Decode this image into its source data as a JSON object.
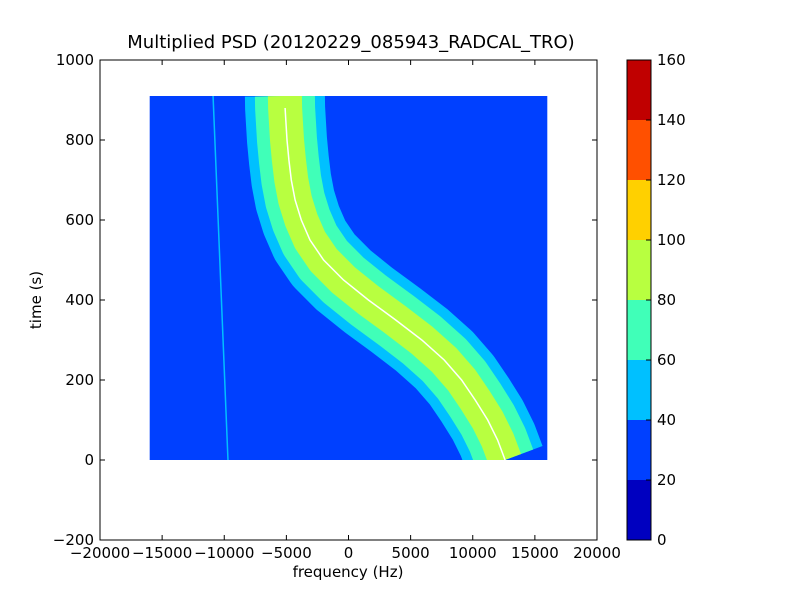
{
  "chart_data": {
    "type": "heatmap",
    "title": "Multiplied PSD (20120229_085943_RADCAL_TRO)",
    "xlabel": "frequency (Hz)",
    "ylabel": "time (s)",
    "xlim": [
      -20000,
      20000
    ],
    "ylim": [
      -200,
      1000
    ],
    "x_ticks": [
      -20000,
      -15000,
      -10000,
      -5000,
      0,
      5000,
      10000,
      15000,
      20000
    ],
    "x_tick_labels": [
      "−20000",
      "−15000",
      "−10000",
      "−5000",
      "0",
      "5000",
      "10000",
      "15000",
      "20000"
    ],
    "y_ticks": [
      -200,
      0,
      200,
      400,
      600,
      800,
      1000
    ],
    "y_tick_labels": [
      "−200",
      "0",
      "200",
      "400",
      "600",
      "800",
      "1000"
    ],
    "data_extent": {
      "x": [
        -16000,
        16000
      ],
      "y": [
        0,
        910
      ]
    },
    "background_value": 25,
    "colorbar": {
      "levels": [
        0,
        20,
        40,
        60,
        80,
        100,
        120,
        140,
        160
      ],
      "tick_labels": [
        "0",
        "20",
        "40",
        "60",
        "80",
        "100",
        "120",
        "140",
        "160"
      ],
      "colors": [
        "#0000c0",
        "#0040ff",
        "#00c0ff",
        "#40ffb8",
        "#b8ff40",
        "#ffd000",
        "#ff5000",
        "#c00000"
      ]
    },
    "features": [
      {
        "name": "doppler-curve",
        "description_points_x_at_time": {
          "time": [
            0,
            50,
            100,
            150,
            200,
            250,
            300,
            350,
            400,
            450,
            500,
            550,
            600,
            650,
            700,
            750,
            800,
            850,
            880
          ],
          "freq": [
            12600,
            12000,
            11200,
            10200,
            9100,
            7700,
            5900,
            3800,
            1600,
            -400,
            -2000,
            -3100,
            -3800,
            -4300,
            -4600,
            -4800,
            -4950,
            -5050,
            -5100
          ]
        },
        "core_value": 95,
        "outer_value": 45
      },
      {
        "name": "carrier-line",
        "time": [
          0,
          910
        ],
        "freq": [
          -9700,
          -10900
        ],
        "value": 55
      }
    ]
  }
}
